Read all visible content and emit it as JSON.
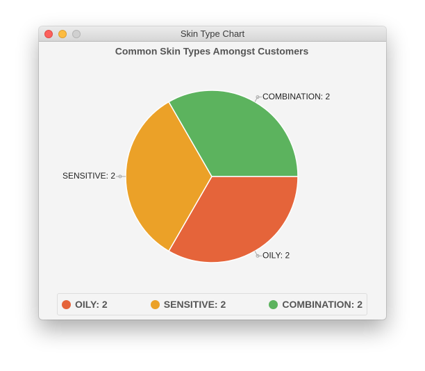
{
  "window": {
    "title": "Skin Type Chart"
  },
  "chart_data": {
    "type": "pie",
    "title": "Common Skin Types Amongst Customers",
    "categories": [
      "OILY: 2",
      "SENSITIVE: 2",
      "COMBINATION: 2"
    ],
    "values": [
      2,
      2,
      2
    ],
    "colors": [
      "#e5643a",
      "#eba128",
      "#5cb35e"
    ],
    "clockwise": true,
    "legend": "bottom"
  }
}
